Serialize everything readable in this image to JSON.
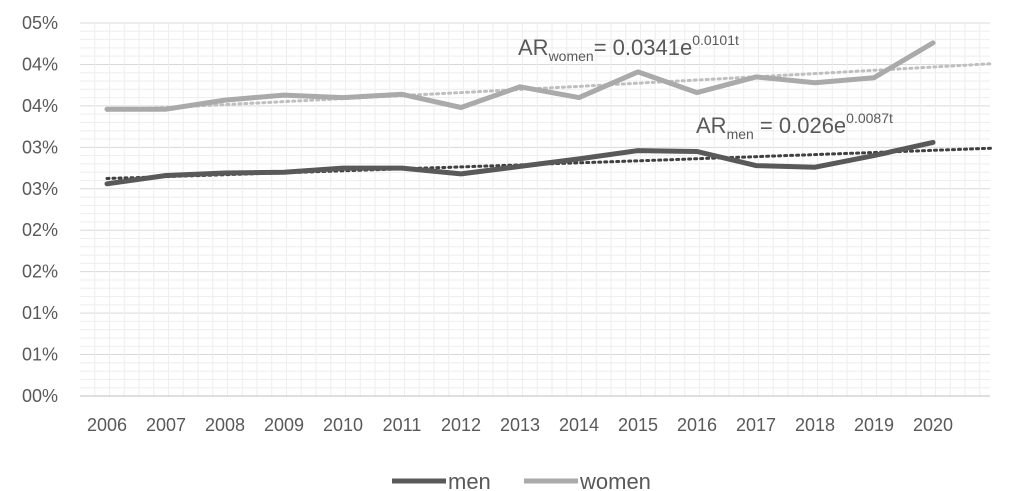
{
  "chart_data": {
    "type": "line",
    "title": "",
    "xlabel": "",
    "ylabel": "",
    "categories": [
      "2006",
      "2007",
      "2008",
      "2009",
      "2010",
      "2011",
      "2012",
      "2013",
      "2014",
      "2015",
      "2016",
      "2017",
      "2018",
      "2019",
      "2020"
    ],
    "y_tick_labels": [
      "00%",
      "01%",
      "01%",
      "02%",
      "02%",
      "03%",
      "03%",
      "04%",
      "04%",
      "05%"
    ],
    "ylim": [
      0,
      0.045
    ],
    "grid": true,
    "legend_position": "bottom",
    "series": [
      {
        "name": "men",
        "color": "#595959",
        "values": [
          0.0256,
          0.0266,
          0.0269,
          0.027,
          0.0275,
          0.0275,
          0.0268,
          0.0277,
          0.0286,
          0.0296,
          0.0295,
          0.0278,
          0.0276,
          0.029,
          0.0306
        ],
        "trendline": {
          "type": "exponential",
          "a": 0.026,
          "b": 0.0087,
          "color": "#404040"
        }
      },
      {
        "name": "women",
        "color": "#aaaaaa",
        "values": [
          0.0346,
          0.0346,
          0.0357,
          0.0363,
          0.036,
          0.0364,
          0.0348,
          0.0373,
          0.036,
          0.0391,
          0.0366,
          0.0385,
          0.0378,
          0.0384,
          0.0426
        ],
        "trendline": {
          "type": "exponential",
          "a": 0.0341,
          "b": 0.0101,
          "color": "#bfbfbf"
        }
      }
    ],
    "annotations": {
      "women": {
        "prefix": "AR",
        "sub": "women",
        "middle": "= 0.0341e",
        "sup": "0.0101t"
      },
      "men": {
        "prefix": "AR",
        "sub": "men",
        "middle": " = 0.026e",
        "sup": "0.0087t"
      }
    }
  }
}
